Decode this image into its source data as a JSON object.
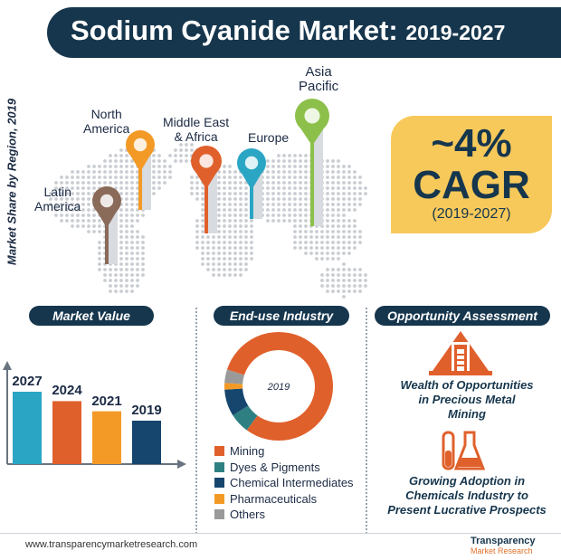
{
  "title": {
    "main": "Sodium Cyanide Market:",
    "years": "2019-2027"
  },
  "side_label": "Market Share by Region, 2019",
  "regions": [
    {
      "name": "Latin America",
      "lines": [
        "Latin",
        "America"
      ],
      "color": "#8a6a58"
    },
    {
      "name": "North America",
      "lines": [
        "North",
        "America"
      ],
      "color": "#f39a26"
    },
    {
      "name": "Middle East & Africa",
      "lines": [
        "Middle East",
        "& Africa"
      ],
      "color": "#e0602c"
    },
    {
      "name": "Europe",
      "lines": [
        "Europe"
      ],
      "color": "#2aa6c4"
    },
    {
      "name": "Asia Pacific",
      "lines": [
        "Asia",
        "Pacific"
      ],
      "color": "#8cc04b"
    }
  ],
  "cagr": {
    "value": "~4%",
    "label": "CAGR",
    "years": "(2019-2027)"
  },
  "sections": {
    "market_value": "Market Value",
    "end_use": "End-use Industry",
    "opportunity": "Opportunity Assessment"
  },
  "chart_data": [
    {
      "type": "bar",
      "title": "Market Value",
      "categories": [
        "2027",
        "2024",
        "2021",
        "2019"
      ],
      "values": [
        100,
        87,
        73,
        60
      ],
      "colors": [
        "#2aa6c4",
        "#e0602c",
        "#f39a26",
        "#16466e"
      ]
    },
    {
      "type": "pie",
      "title": "End-use Industry",
      "center_label": "2019",
      "labels": [
        "Mining",
        "Dyes & Pigments",
        "Chemical Intermediates",
        "Pharmaceuticals",
        "Others"
      ],
      "values": [
        80,
        6,
        8,
        2,
        4
      ],
      "colors": [
        "#e0602c",
        "#2e7f82",
        "#16466e",
        "#f39a26",
        "#9a9a9a"
      ]
    }
  ],
  "opportunities": [
    {
      "lines": [
        "Wealth of Opportunities",
        "in Precious Metal",
        "Mining"
      ],
      "icon": "mine-icon"
    },
    {
      "lines": [
        "Growing Adoption in",
        "Chemicals Industry to",
        "Present Lucrative Prospects"
      ],
      "icon": "flask-icon"
    }
  ],
  "footer": {
    "url": "www.transparencymarketresearch.com",
    "logo_name": "Transparency",
    "logo_sub": "Market Research"
  }
}
